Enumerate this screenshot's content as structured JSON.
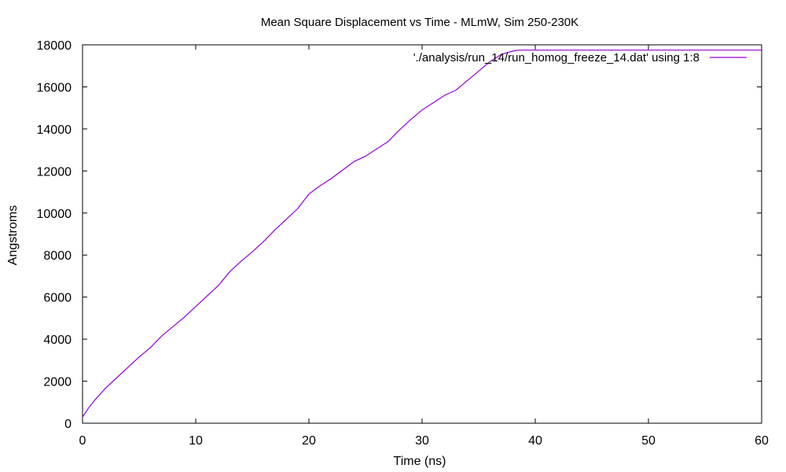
{
  "chart_data": {
    "type": "line",
    "title": "Mean Square Displacement vs Time - MLmW, Sim 250-230K",
    "xlabel": "Time (ns)",
    "ylabel": "Angstroms",
    "xlim": [
      0,
      60
    ],
    "ylim": [
      0,
      18000
    ],
    "xticks": [
      0,
      10,
      20,
      30,
      40,
      50,
      60
    ],
    "yticks": [
      0,
      2000,
      4000,
      6000,
      8000,
      10000,
      12000,
      14000,
      16000,
      18000
    ],
    "grid": false,
    "legend_position": "top-right",
    "series": [
      {
        "name": "'./analysis/run_14/run_homog_freeze_14.dat' using 1:8",
        "color": "#9400d3",
        "x": [
          0,
          0.5,
          1,
          2,
          3,
          4,
          5,
          6,
          7,
          8,
          9,
          10,
          11,
          12,
          13,
          14,
          15,
          16,
          17,
          18,
          19,
          20,
          21,
          22,
          23,
          24,
          25,
          26,
          27,
          28,
          29,
          30,
          31,
          32,
          33,
          34,
          35,
          36,
          37,
          38,
          38.5,
          40,
          45,
          50,
          55,
          60
        ],
        "y": [
          300,
          700,
          1050,
          1650,
          2150,
          2650,
          3150,
          3600,
          4150,
          4600,
          5050,
          5550,
          6050,
          6550,
          7200,
          7700,
          8150,
          8650,
          9200,
          9700,
          10200,
          10900,
          11300,
          11650,
          12050,
          12450,
          12700,
          13050,
          13400,
          13950,
          14450,
          14900,
          15250,
          15600,
          15850,
          16300,
          16750,
          17200,
          17550,
          17700,
          17750,
          17750,
          17750,
          17750,
          17750,
          17750
        ]
      }
    ]
  }
}
